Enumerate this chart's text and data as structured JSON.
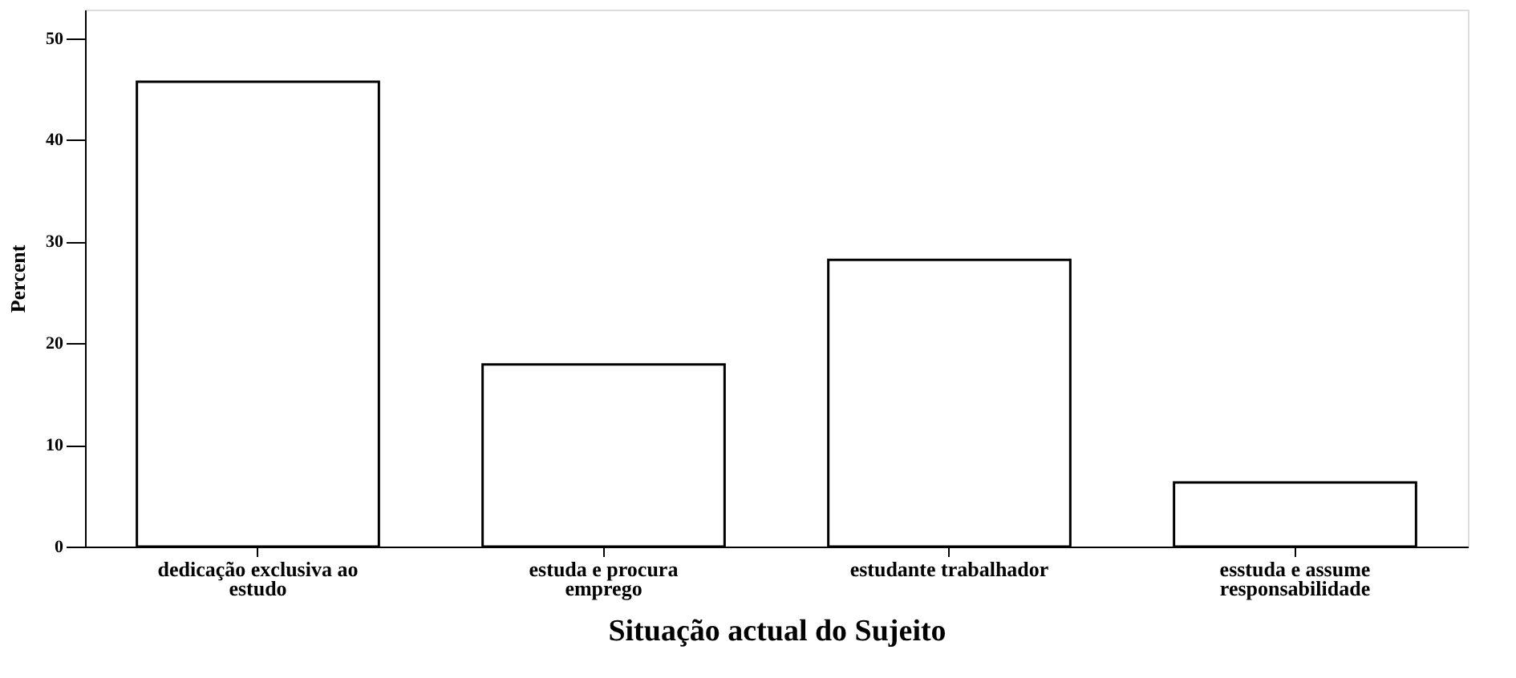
{
  "chart_data": {
    "type": "bar",
    "xlabel": "Situação actual do Sujeito",
    "ylabel": "Percent",
    "categories": [
      "dedicação exclusiva ao estudo",
      "estuda e procura emprego",
      "estudante trabalhador",
      "esstuda e assume responsabilidade"
    ],
    "values": [
      45.7,
      17.9,
      28.2,
      6.3
    ],
    "color": "#ffffff",
    "ylim": [
      0,
      52.8
    ],
    "yticks": [
      0,
      10,
      20,
      30,
      40,
      50
    ],
    "grid": false
  }
}
